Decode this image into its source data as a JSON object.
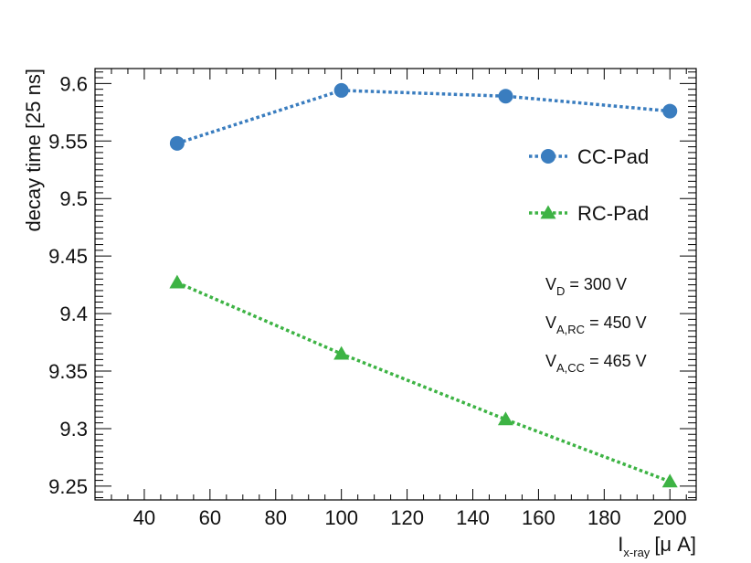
{
  "chart_data": {
    "type": "line",
    "title": "",
    "xlabel": {
      "main": "I",
      "sub": "x-ray",
      "unit": "[μ A]"
    },
    "ylabel": "decay time [25 ns]",
    "xlim": [
      25,
      208
    ],
    "ylim": [
      9.238,
      9.613
    ],
    "xticks": [
      "40",
      "60",
      "80",
      "100",
      "120",
      "140",
      "160",
      "180",
      "200"
    ],
    "yticks": [
      "9.25",
      "9.3",
      "9.35",
      "9.4",
      "9.45",
      "9.5",
      "9.55",
      "9.6"
    ],
    "x": [
      50,
      100,
      150,
      200
    ],
    "series": [
      {
        "name": "CC-Pad",
        "marker": "circle",
        "line_style": "dotted",
        "color": "#3a7dbf",
        "values": [
          9.548,
          9.594,
          9.589,
          9.576
        ]
      },
      {
        "name": "RC-Pad",
        "marker": "triangle",
        "line_style": "dotted",
        "color": "#3db344",
        "values": [
          9.427,
          9.365,
          9.308,
          9.254
        ]
      }
    ],
    "legend_position": "upper-right",
    "annotations": [
      {
        "main": "V",
        "sub": "D",
        "rest": " = 300 V"
      },
      {
        "main": "V",
        "sub": "A,RC",
        "rest": " = 450 V"
      },
      {
        "main": "V",
        "sub": "A,CC",
        "rest": " = 465 V"
      }
    ],
    "grid": false
  }
}
